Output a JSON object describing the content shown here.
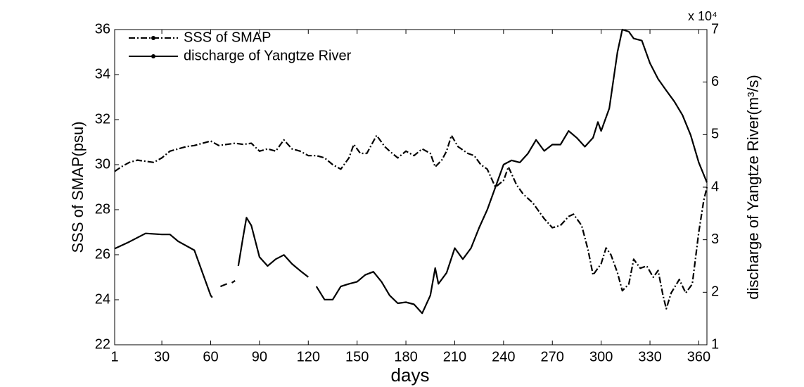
{
  "chart_data": {
    "type": "line",
    "x_label": "days",
    "y_label": "SSS of SMAP(psu)",
    "y2_label": "discharge of Yangtze River(m³/s)",
    "y2_multiplier": "x 10⁴",
    "xlim": [
      1,
      365
    ],
    "xticks": [
      1,
      30,
      60,
      90,
      120,
      150,
      180,
      210,
      240,
      270,
      300,
      330,
      360
    ],
    "ylim": [
      22,
      36
    ],
    "yticks": [
      22,
      24,
      26,
      28,
      30,
      32,
      34,
      36
    ],
    "y2lim": [
      1,
      7
    ],
    "y2ticks": [
      1,
      2,
      3,
      4,
      5,
      6,
      7
    ],
    "legend": "upper left",
    "series": [
      {
        "name": "SSS of SMAP",
        "color": "#000000",
        "dash": "dashdot",
        "axis": "y",
        "x": [
          1,
          5,
          10,
          15,
          20,
          25,
          30,
          35,
          40,
          45,
          50,
          55,
          60,
          65,
          70,
          75,
          80,
          85,
          90,
          95,
          100,
          105,
          110,
          115,
          120,
          125,
          130,
          135,
          140,
          145,
          148,
          152,
          156,
          162,
          167,
          170,
          175,
          180,
          185,
          190,
          195,
          198,
          202,
          205,
          208,
          212,
          218,
          222,
          226,
          230,
          235,
          240,
          243,
          248,
          252,
          258,
          262,
          265,
          270,
          275,
          280,
          283,
          288,
          292,
          295,
          300,
          303,
          306,
          310,
          313,
          317,
          320,
          324,
          328,
          332,
          335,
          338,
          340,
          343,
          348,
          352,
          356,
          360,
          363,
          365
        ],
        "values": [
          29.7,
          29.9,
          30.1,
          30.2,
          30.15,
          30.1,
          30.3,
          30.6,
          30.7,
          30.8,
          30.85,
          30.95,
          31.05,
          30.85,
          30.9,
          30.95,
          30.9,
          30.95,
          30.6,
          30.7,
          30.6,
          31.1,
          30.7,
          30.6,
          30.4,
          30.4,
          30.3,
          30.0,
          29.8,
          30.3,
          30.9,
          30.5,
          30.5,
          31.3,
          30.8,
          30.6,
          30.3,
          30.6,
          30.4,
          30.7,
          30.5,
          29.9,
          30.2,
          30.6,
          31.3,
          30.8,
          30.5,
          30.4,
          30.0,
          29.8,
          29.0,
          29.3,
          29.9,
          29.1,
          28.7,
          28.3,
          27.9,
          27.6,
          27.2,
          27.3,
          27.7,
          27.8,
          27.3,
          26.2,
          25.1,
          25.6,
          26.3,
          26.0,
          25.2,
          24.4,
          24.7,
          25.8,
          25.4,
          25.5,
          25.0,
          25.3,
          24.2,
          23.6,
          24.3,
          24.9,
          24.3,
          24.7,
          27.0,
          28.4,
          29.0
        ]
      },
      {
        "name": "discharge of Yangtze River",
        "color": "#000000",
        "dash": "solid",
        "axis": "y2",
        "x": [
          1,
          10,
          20,
          30,
          35,
          40,
          50,
          55,
          60,
          61,
          63,
          66,
          70,
          72,
          73,
          75,
          76,
          77,
          80,
          82,
          85,
          90,
          95,
          100,
          105,
          110,
          115,
          120,
          122,
          125,
          130,
          135,
          140,
          145,
          150,
          155,
          160,
          165,
          170,
          175,
          180,
          185,
          190,
          195,
          198,
          200,
          205,
          210,
          215,
          220,
          225,
          230,
          235,
          240,
          245,
          250,
          255,
          260,
          265,
          270,
          275,
          280,
          285,
          290,
          295,
          298,
          300,
          305,
          310,
          313,
          317,
          320,
          325,
          330,
          335,
          340,
          345,
          350,
          355,
          360,
          365
        ],
        "values": [
          2.83,
          2.96,
          3.12,
          3.1,
          3.1,
          2.97,
          2.8,
          2.37,
          1.94,
          1.9,
          null,
          2.11,
          2.16,
          null,
          2.18,
          2.22,
          null,
          2.5,
          3.06,
          3.42,
          3.27,
          2.67,
          2.5,
          2.63,
          2.71,
          2.54,
          2.41,
          2.29,
          null,
          2.11,
          1.86,
          1.86,
          2.11,
          2.16,
          2.2,
          2.33,
          2.39,
          2.2,
          1.94,
          1.79,
          1.81,
          1.77,
          1.6,
          1.94,
          2.46,
          2.16,
          2.37,
          2.84,
          2.63,
          2.84,
          3.23,
          3.57,
          4.0,
          4.43,
          4.51,
          4.47,
          4.64,
          4.9,
          4.69,
          4.81,
          4.81,
          5.07,
          4.94,
          4.77,
          4.94,
          5.24,
          5.07,
          5.5,
          6.57,
          7.0,
          6.96,
          6.83,
          6.79,
          6.36,
          6.06,
          5.84,
          5.63,
          5.37,
          4.99,
          4.47,
          4.09
        ]
      }
    ]
  }
}
